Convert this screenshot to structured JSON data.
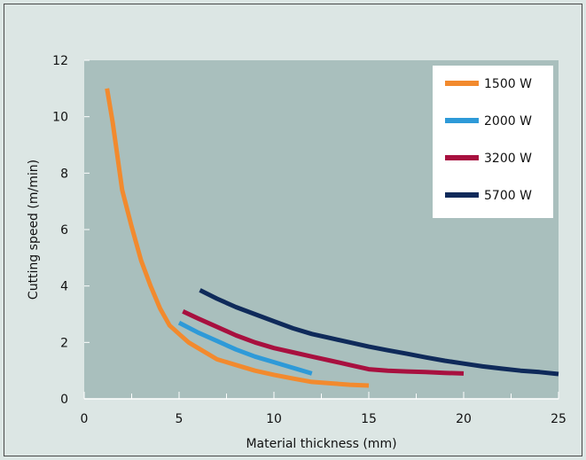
{
  "chart_data": {
    "type": "line",
    "title": "",
    "xlabel": "Material thickness (mm)",
    "ylabel": "Cutting speed (m/min)",
    "xlim": [
      0,
      25
    ],
    "ylim": [
      0,
      12
    ],
    "xticks": [
      0,
      5,
      10,
      15,
      20,
      25
    ],
    "yticks": [
      0,
      2,
      4,
      6,
      8,
      10,
      12
    ],
    "grid": false,
    "legend_position": "top-right",
    "plot_background": "#a9bfbd",
    "series": [
      {
        "name": "1500 W",
        "color": "#f28a2e",
        "x": [
          1.2,
          1.5,
          2,
          2.5,
          3,
          3.5,
          4,
          4.5,
          5,
          5.5,
          6,
          7,
          8,
          9,
          10,
          11,
          12,
          13,
          14,
          15
        ],
        "y": [
          11.0,
          9.8,
          7.4,
          6.1,
          4.9,
          4.0,
          3.2,
          2.6,
          2.3,
          2.0,
          1.8,
          1.4,
          1.2,
          1.0,
          0.85,
          0.72,
          0.6,
          0.55,
          0.5,
          0.47
        ]
      },
      {
        "name": "2000 W",
        "color": "#2e9ad8",
        "x": [
          5,
          6,
          7,
          8,
          9,
          10,
          11,
          12
        ],
        "y": [
          2.7,
          2.35,
          2.05,
          1.75,
          1.5,
          1.3,
          1.1,
          0.9
        ]
      },
      {
        "name": "3200 W",
        "color": "#a8103f",
        "x": [
          5.2,
          6,
          7,
          8,
          9,
          10,
          11,
          12,
          13,
          14,
          15,
          16,
          17,
          18,
          19,
          20
        ],
        "y": [
          3.1,
          2.85,
          2.55,
          2.25,
          2.0,
          1.8,
          1.65,
          1.5,
          1.35,
          1.2,
          1.05,
          1.0,
          0.97,
          0.95,
          0.92,
          0.9
        ]
      },
      {
        "name": "5700 W",
        "color": "#0f2a5a",
        "x": [
          6.1,
          7,
          8,
          9,
          10,
          11,
          12,
          13,
          14,
          15,
          16,
          17,
          18,
          19,
          20,
          21,
          22,
          23,
          24,
          25
        ],
        "y": [
          3.85,
          3.55,
          3.25,
          3.0,
          2.75,
          2.5,
          2.3,
          2.15,
          2.0,
          1.85,
          1.72,
          1.6,
          1.47,
          1.35,
          1.25,
          1.15,
          1.07,
          1.0,
          0.95,
          0.88
        ]
      }
    ]
  }
}
